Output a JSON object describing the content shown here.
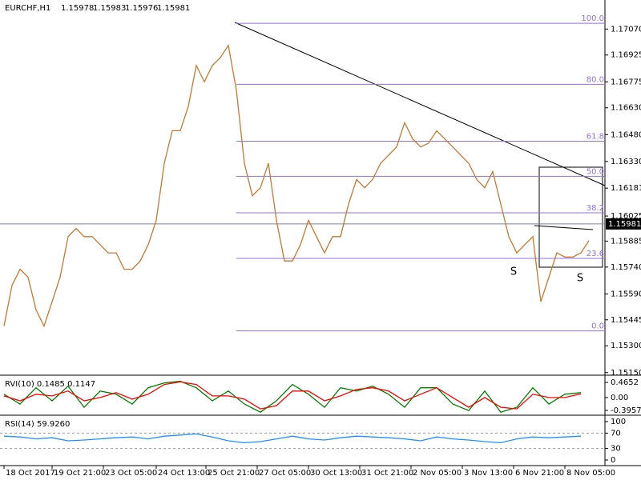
{
  "chart_data": [
    {
      "type": "line",
      "title": "EURCHF,H1",
      "ohlc": [
        1.15978,
        1.15983,
        1.15976,
        1.15981
      ],
      "color": "#c8782f",
      "x": [
        0,
        5,
        10,
        15,
        20,
        25,
        30,
        35,
        40,
        45,
        50,
        55,
        60,
        65,
        70,
        75,
        80,
        85,
        90,
        95,
        100,
        105,
        110,
        115,
        120,
        125,
        130,
        135,
        140,
        145,
        150,
        155,
        160,
        165,
        170,
        175,
        180,
        185,
        190,
        195,
        200,
        205,
        210,
        215,
        220,
        225,
        230,
        235,
        240,
        245,
        250,
        255,
        260,
        265,
        270,
        275,
        280,
        285,
        290,
        295,
        300,
        305,
        310,
        315,
        320,
        325,
        330,
        335,
        340,
        345,
        350,
        355,
        360,
        365
      ],
      "values": [
        1.1541,
        1.15637,
        1.15728,
        1.15683,
        1.15501,
        1.1541,
        1.15546,
        1.15683,
        1.1591,
        1.15956,
        1.1591,
        1.1591,
        1.15865,
        1.15819,
        1.15819,
        1.15728,
        1.15728,
        1.15774,
        1.15865,
        1.16001,
        1.1632,
        1.16502,
        1.16502,
        1.16638,
        1.16866,
        1.16775,
        1.16866,
        1.16911,
        1.16979,
        1.16729,
        1.1632,
        1.16138,
        1.16183,
        1.1632,
        1.16001,
        1.15774,
        1.15774,
        1.15865,
        1.16001,
        1.1591,
        1.15819,
        1.1591,
        1.1591,
        1.16092,
        1.16229,
        1.16183,
        1.16229,
        1.1632,
        1.16365,
        1.16411,
        1.16547,
        1.16456,
        1.16411,
        1.16433,
        1.16502,
        1.16456,
        1.16411,
        1.16365,
        1.1632,
        1.16229,
        1.16183,
        1.16274,
        1.16092,
        1.1591,
        1.15819,
        1.15865,
        1.1591,
        1.15546,
        1.15683,
        1.15819,
        1.15796,
        1.15796,
        1.15819,
        1.15887
      ],
      "xlim": [
        -2.5,
        375
      ],
      "ylim": [
        1.1514,
        1.1721
      ],
      "yticks": [
        {
          "value": 1.1707,
          "label": "1.17070"
        },
        {
          "value": 1.16925,
          "label": "1.16925"
        },
        {
          "value": 1.16775,
          "label": "1.16775"
        },
        {
          "value": 1.1663,
          "label": "1.16630"
        },
        {
          "value": 1.1648,
          "label": "1.16480"
        },
        {
          "value": 1.1633,
          "label": "1.16330"
        },
        {
          "value": 1.16181,
          "label": "1.16181"
        },
        {
          "value": 1.16025,
          "label": "1.16025"
        },
        {
          "value": 1.15885,
          "label": "1.15885"
        },
        {
          "value": 1.1574,
          "label": "1.15740"
        },
        {
          "value": 1.1559,
          "label": "1.15590"
        },
        {
          "value": 1.15445,
          "label": "1.15445"
        },
        {
          "value": 1.153,
          "label": "1.15300"
        },
        {
          "value": 1.1515,
          "label": "1.15150"
        }
      ],
      "xticks": [
        {
          "value": 0,
          "label": "18 Oct 2017"
        },
        {
          "value": 30,
          "label": "19 Oct 21:00"
        },
        {
          "value": 62,
          "label": "23 Oct 05:00"
        },
        {
          "value": 95,
          "label": "24 Oct 13:00"
        },
        {
          "value": 126,
          "label": "25 Oct 21:00"
        },
        {
          "value": 158,
          "label": "27 Oct 05:00"
        },
        {
          "value": 190,
          "label": "30 Oct 13:00"
        },
        {
          "value": 222,
          "label": "31 Oct 21:00"
        },
        {
          "value": 254,
          "label": "2 Nov 05:00"
        },
        {
          "value": 286,
          "label": "3 Nov 13:00"
        },
        {
          "value": 318,
          "label": "6 Nov 21:00"
        },
        {
          "value": 350,
          "label": "8 Nov 05:00"
        }
      ],
      "current_price": 1.15981,
      "fib_levels": [
        {
          "value": 1.17102,
          "label": "100.0"
        },
        {
          "value": 1.16761,
          "label": "80.0"
        },
        {
          "value": 1.16443,
          "label": "61.8"
        },
        {
          "value": 1.16247,
          "label": "50.0"
        },
        {
          "value": 1.16043,
          "label": "38.2"
        },
        {
          "value": 1.15788,
          "label": "23.6"
        },
        {
          "value": 1.15383,
          "label": "0.0"
        }
      ],
      "annotations": [
        "S",
        "S"
      ]
    },
    {
      "type": "line",
      "title": "RVI(10) 0.1485 0.1147",
      "x": [
        0,
        10,
        20,
        30,
        40,
        50,
        60,
        70,
        80,
        90,
        100,
        110,
        120,
        130,
        140,
        150,
        160,
        170,
        180,
        190,
        200,
        210,
        220,
        230,
        240,
        250,
        260,
        270,
        280,
        290,
        300,
        310,
        320,
        330,
        340,
        350,
        360
      ],
      "series": [
        {
          "color": "#008000",
          "values": [
            0.1,
            -0.2,
            0.3,
            -0.1,
            0.35,
            -0.3,
            0.2,
            0.1,
            -0.2,
            0.3,
            0.45,
            0.5,
            0.3,
            -0.1,
            0.2,
            -0.2,
            -0.45,
            -0.1,
            0.4,
            0.1,
            -0.3,
            0.3,
            0.2,
            0.35,
            0.1,
            -0.3,
            0.3,
            0.3,
            -0.2,
            -0.4,
            0.2,
            -0.45,
            -0.3,
            0.3,
            -0.2,
            0.1,
            0.15
          ]
        },
        {
          "color": "#ff0000",
          "values": [
            0.05,
            -0.1,
            0.1,
            0.05,
            0.2,
            -0.1,
            0.0,
            0.15,
            -0.05,
            0.1,
            0.4,
            0.48,
            0.4,
            0.05,
            0.05,
            -0.05,
            -0.35,
            -0.25,
            0.2,
            0.2,
            -0.1,
            0.05,
            0.25,
            0.3,
            0.2,
            -0.1,
            0.1,
            0.3,
            0.0,
            -0.3,
            0.0,
            -0.3,
            -0.35,
            0.1,
            0.0,
            0.0,
            0.11
          ]
        }
      ],
      "ylim": [
        -0.494,
        0.637
      ],
      "yticks": [
        0.4652,
        {
          "value": 0,
          "label": "0.00"
        },
        -0.3957
      ]
    },
    {
      "type": "line",
      "title": "RSI(14) 59.9260",
      "x": [
        0,
        10,
        20,
        30,
        40,
        50,
        60,
        70,
        80,
        90,
        100,
        110,
        120,
        130,
        140,
        150,
        160,
        170,
        180,
        190,
        200,
        210,
        220,
        230,
        240,
        250,
        260,
        270,
        280,
        290,
        300,
        310,
        320,
        330,
        340,
        350,
        360
      ],
      "series": [
        {
          "color": "#1e90ff",
          "values": [
            62,
            60,
            55,
            58,
            50,
            52,
            55,
            58,
            60,
            55,
            62,
            65,
            68,
            60,
            50,
            45,
            48,
            55,
            62,
            55,
            52,
            58,
            62,
            60,
            58,
            55,
            50,
            60,
            55,
            52,
            48,
            45,
            55,
            60,
            58,
            60,
            62
          ]
        }
      ],
      "ylim": [
        -10.4,
        112.5
      ],
      "yticks": [
        100,
        70,
        30,
        0
      ],
      "levels": [
        70,
        30
      ]
    }
  ]
}
